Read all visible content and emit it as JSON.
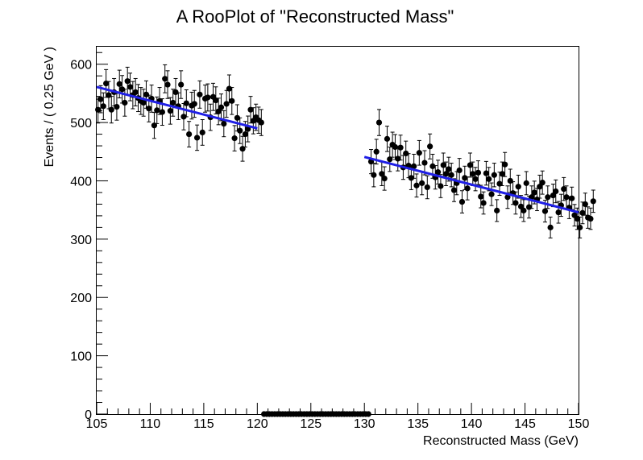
{
  "chart_data": {
    "type": "scatter",
    "title": "A RooPlot of \"Reconstructed Mass\"",
    "xlabel": "Reconstructed Mass (GeV)",
    "ylabel": "Events / ( 0.25 GeV )",
    "xlim": [
      105,
      150
    ],
    "ylim": [
      0,
      630
    ],
    "x_ticks": [
      105,
      110,
      115,
      120,
      125,
      130,
      135,
      140,
      145,
      150
    ],
    "x_tick_labels": [
      "105",
      "110",
      "115",
      "120",
      "125",
      "130",
      "135",
      "140",
      "145",
      "150"
    ],
    "y_ticks": [
      0,
      100,
      200,
      300,
      400,
      500,
      600
    ],
    "y_tick_labels": [
      "0",
      "100",
      "200",
      "300",
      "400",
      "500",
      "600"
    ],
    "grid": false,
    "bin_width": 0.25,
    "series": [
      {
        "type": "data-points-with-errors",
        "x_start": 105.125,
        "colors": {
          "marker": "#000000"
        },
        "values": [
          522,
          540,
          528,
          567,
          547,
          522,
          552,
          527,
          566,
          557,
          534,
          571,
          561,
          547,
          552,
          542,
          537,
          534,
          548,
          524,
          541,
          495,
          521,
          537,
          518,
          575,
          565,
          520,
          534,
          552,
          528,
          565,
          510,
          533,
          480,
          529,
          532,
          474,
          548,
          483,
          541,
          543,
          509,
          544,
          538,
          519,
          526,
          498,
          532,
          558,
          537,
          473,
          508,
          486,
          455,
          480,
          489,
          522,
          503,
          509,
          504,
          500,
          0,
          0,
          0,
          0,
          0,
          0,
          0,
          0,
          0,
          0,
          0,
          0,
          0,
          0,
          0,
          0,
          0,
          0,
          0,
          0,
          0,
          0,
          0,
          0,
          0,
          0,
          0,
          0,
          0,
          0,
          0,
          0,
          0,
          0,
          0,
          0,
          0,
          0,
          0,
          0,
          433,
          410,
          450,
          500,
          412,
          404,
          472,
          437,
          462,
          458,
          438,
          457,
          423,
          447,
          426,
          405,
          425,
          392,
          448,
          396,
          431,
          389,
          459,
          425,
          406,
          415,
          391,
          427,
          412,
          420,
          410,
          384,
          396,
          418,
          364,
          405,
          387,
          427,
          412,
          403,
          414,
          373,
          362,
          413,
          403,
          377,
          410,
          349,
          395,
          412,
          428,
          372,
          400,
          379,
          362,
          390,
          356,
          349,
          396,
          355,
          372,
          380,
          368,
          390,
          397,
          348,
          372,
          320,
          375,
          382,
          346,
          358,
          386,
          372,
          354,
          370,
          341,
          335,
          320,
          345,
          360,
          337,
          335,
          365
        ]
      },
      {
        "type": "fit-line",
        "colors": {
          "line": "#1f1fe6"
        },
        "segments": [
          {
            "x": [
              105,
              120
            ],
            "y": [
              561,
              490
            ]
          },
          {
            "x": [
              130,
              150
            ],
            "y": [
              441,
              346
            ]
          }
        ]
      }
    ]
  }
}
